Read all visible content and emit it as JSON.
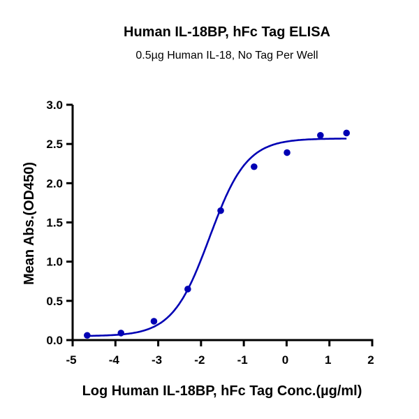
{
  "chart_data": {
    "type": "scatter",
    "title": "Human IL-18BP, hFc Tag ELISA",
    "subtitle": "0.5µg Human IL-18, No Tag Per Well",
    "xlabel": "Log Human IL-18BP, hFc Tag Conc.(µg/ml)",
    "ylabel": "Mean Abs.(OD450)",
    "xlim": [
      -5,
      2
    ],
    "ylim": [
      0,
      3.0
    ],
    "xticks": [
      "-5",
      "-4",
      "-3",
      "-2",
      "-1",
      "0",
      "1",
      "2"
    ],
    "yticks": [
      "0.0",
      "0.5",
      "1.0",
      "1.5",
      "2.0",
      "2.5",
      "3.0"
    ],
    "grid": false,
    "color": "#0000b4",
    "points": {
      "x": [
        -4.66,
        -3.87,
        -3.1,
        -2.31,
        -1.54,
        -0.76,
        0.01,
        0.79,
        1.4
      ],
      "y": [
        0.06,
        0.09,
        0.24,
        0.65,
        1.65,
        2.21,
        2.39,
        2.61,
        2.64
      ]
    },
    "fit_curve": {
      "model": "4-parameter logistic",
      "bottom": 0.05,
      "top": 2.57,
      "log_ec50": -1.8,
      "hill_slope": 1.0,
      "x_range": [
        -4.66,
        1.4
      ]
    }
  }
}
